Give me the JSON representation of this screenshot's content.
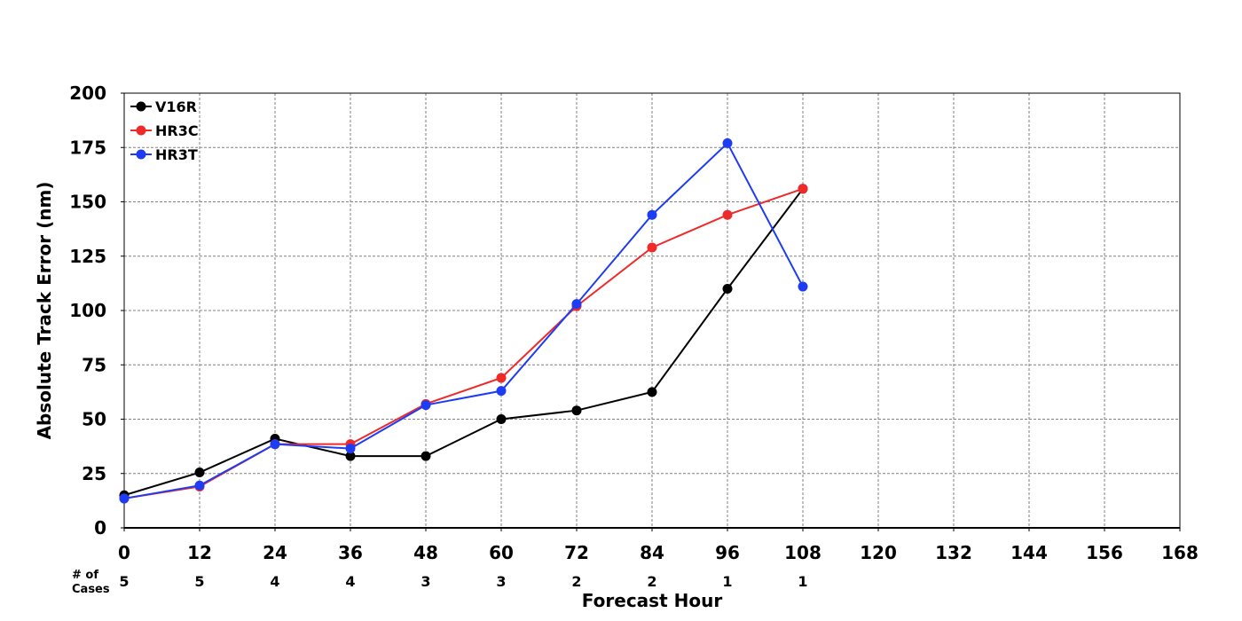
{
  "chart_data": {
    "type": "line",
    "xlabel": "Forecast Hour",
    "ylabel": "Absolute Track Error (nm)",
    "xlim": [
      0,
      168
    ],
    "ylim": [
      0,
      200
    ],
    "x_ticks": [
      "0",
      "12",
      "24",
      "36",
      "48",
      "60",
      "72",
      "84",
      "96",
      "108",
      "120",
      "132",
      "144",
      "156",
      "168"
    ],
    "y_ticks": [
      "0",
      "25",
      "50",
      "75",
      "100",
      "125",
      "150",
      "175",
      "200"
    ],
    "grid": true,
    "legend_position": "top-left",
    "series": [
      {
        "name": "V16R",
        "color": "#000000",
        "x": [
          0,
          12,
          24,
          36,
          48,
          60,
          72,
          84,
          96,
          108
        ],
        "y": [
          15,
          25.5,
          41,
          33,
          33,
          50,
          54,
          62.5,
          110,
          156
        ]
      },
      {
        "name": "HR3C",
        "color": "#ee2a2a",
        "x": [
          0,
          12,
          24,
          36,
          48,
          60,
          72,
          84,
          96,
          108
        ],
        "y": [
          13.5,
          19,
          38.5,
          38.5,
          57,
          69,
          102,
          129,
          144,
          156
        ]
      },
      {
        "name": "HR3T",
        "color": "#1f3cf5",
        "x": [
          0,
          12,
          24,
          36,
          48,
          60,
          72,
          84,
          96,
          108
        ],
        "y": [
          13.5,
          19.5,
          38.5,
          36.5,
          56.5,
          63,
          103,
          144,
          177,
          111
        ]
      }
    ],
    "cases": {
      "label_line1": "# of",
      "label_line2": "Cases",
      "x": [
        0,
        12,
        24,
        36,
        48,
        60,
        72,
        84,
        96,
        108
      ],
      "values": [
        "5",
        "5",
        "4",
        "4",
        "3",
        "3",
        "2",
        "2",
        "1",
        "1"
      ]
    }
  }
}
